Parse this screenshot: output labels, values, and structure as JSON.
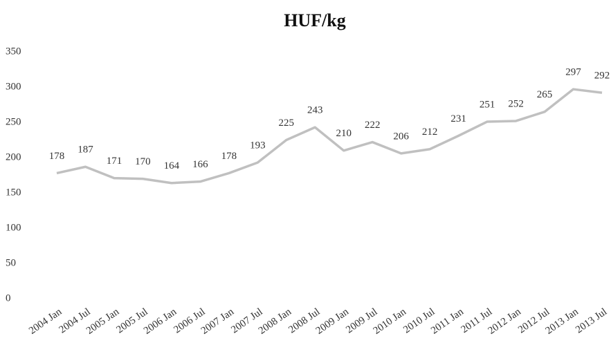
{
  "chart_data": {
    "type": "line",
    "title": "HUF/kg",
    "categories": [
      "2004 Jan",
      "2004 Jul",
      "2005 Jan",
      "2005 Jul",
      "2006 Jan",
      "2006 Jul",
      "2007 Jan",
      "2007 Jul",
      "2008 Jan",
      "2008 Jul",
      "2009 Jan",
      "2009 Jul",
      "2010 Jan",
      "2010 Jul",
      "2011 Jan",
      "2011 Jul",
      "2012 Jan",
      "2012 Jul",
      "2013 Jan",
      "2013 Jul"
    ],
    "values": [
      178,
      187,
      171,
      170,
      164,
      166,
      178,
      193,
      225,
      243,
      210,
      222,
      206,
      212,
      231,
      251,
      252,
      265,
      297,
      292
    ],
    "color": "#c0c0c0",
    "ylim": [
      0,
      350
    ],
    "yticks": [
      0,
      50,
      100,
      150,
      200,
      250,
      300,
      350
    ],
    "grid": false
  }
}
